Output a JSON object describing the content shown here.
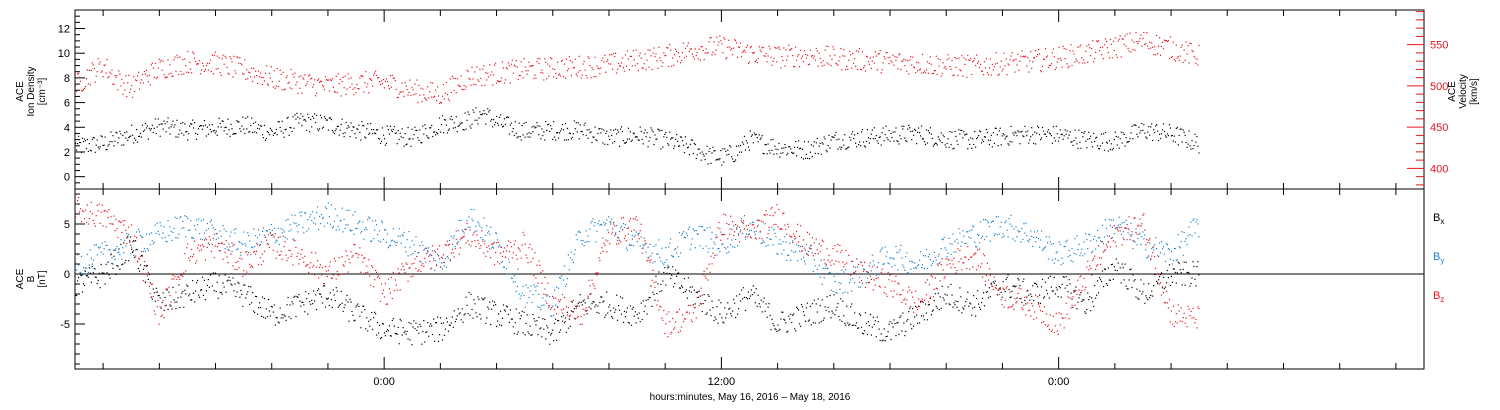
{
  "chart_data": [
    {
      "type": "scatter",
      "panel": "top",
      "ylabel_left": [
        "ACE",
        "Ion Density",
        "[cm⁻³]"
      ],
      "ylabel_right": [
        "ACE",
        "Velocity",
        "[km/s]"
      ],
      "ylim_left": [
        -1,
        13.5
      ],
      "yticks_left": [
        0,
        2,
        4,
        6,
        8,
        10,
        12
      ],
      "ylim_right": [
        375,
        592
      ],
      "yticks_right": [
        400,
        450,
        500,
        550
      ],
      "right_axis_color": "#e8141e",
      "series": [
        {
          "axis": "left",
          "color": "#000000",
          "values": [
            [
              -11,
              2.5
            ],
            [
              -10,
              2.7
            ],
            [
              -9,
              3.5
            ],
            [
              -8,
              4.1
            ],
            [
              -7,
              3.8
            ],
            [
              -6,
              4.0
            ],
            [
              -5,
              4.2
            ],
            [
              -4,
              3.6
            ],
            [
              -3,
              4.5
            ],
            [
              -2,
              4.3
            ],
            [
              -1,
              3.8
            ],
            [
              0,
              3.4
            ],
            [
              1,
              3.2
            ],
            [
              2,
              4.3
            ],
            [
              3,
              4.6
            ],
            [
              3.5,
              5.2
            ],
            [
              4,
              4.4
            ],
            [
              5,
              3.7
            ],
            [
              6,
              3.8
            ],
            [
              7,
              3.8
            ],
            [
              8,
              3.2
            ],
            [
              9,
              3.4
            ],
            [
              10,
              3.0
            ],
            [
              11,
              2.3
            ],
            [
              11.5,
              1.8
            ],
            [
              12,
              1.6
            ],
            [
              12.5,
              2.0
            ],
            [
              13,
              3.0
            ],
            [
              14,
              2.4
            ],
            [
              15,
              2.2
            ],
            [
              16,
              3.0
            ],
            [
              17,
              3.2
            ],
            [
              18,
              3.4
            ],
            [
              19,
              3.5
            ],
            [
              20,
              3.1
            ],
            [
              21,
              3.0
            ],
            [
              22,
              3.3
            ],
            [
              23,
              3.5
            ],
            [
              24,
              3.4
            ],
            [
              25,
              3.0
            ],
            [
              26,
              2.9
            ],
            [
              27,
              3.8
            ],
            [
              28,
              3.5
            ],
            [
              29,
              2.7
            ]
          ]
        },
        {
          "axis": "right",
          "color": "#e8141e",
          "values": [
            [
              -11,
              500
            ],
            [
              -10.5,
              515
            ],
            [
              -10,
              525
            ],
            [
              -9.5,
              508
            ],
            [
              -9,
              498
            ],
            [
              -8.5,
              512
            ],
            [
              -8,
              522
            ],
            [
              -7,
              530
            ],
            [
              -6,
              528
            ],
            [
              -5,
              520
            ],
            [
              -4,
              510
            ],
            [
              -3,
              505
            ],
            [
              -2,
              500
            ],
            [
              -1,
              504
            ],
            [
              0,
              505
            ],
            [
              1,
              495
            ],
            [
              2,
              490
            ],
            [
              3,
              512
            ],
            [
              4,
              516
            ],
            [
              5,
              520
            ],
            [
              6,
              522
            ],
            [
              7,
              524
            ],
            [
              8,
              526
            ],
            [
              9,
              532
            ],
            [
              10,
              536
            ],
            [
              11,
              545
            ],
            [
              12,
              548
            ],
            [
              12.5,
              544
            ],
            [
              13,
              540
            ],
            [
              14,
              536
            ],
            [
              15,
              538
            ],
            [
              16,
              534
            ],
            [
              17,
              532
            ],
            [
              18,
              530
            ],
            [
              19,
              528
            ],
            [
              20,
              525
            ],
            [
              21,
              524
            ],
            [
              22,
              528
            ],
            [
              23,
              530
            ],
            [
              24,
              535
            ],
            [
              25,
              540
            ],
            [
              26,
              548
            ],
            [
              27,
              555
            ],
            [
              28,
              546
            ],
            [
              29,
              536
            ]
          ]
        }
      ]
    },
    {
      "type": "scatter",
      "panel": "bottom",
      "ylabel_left": [
        "ACE",
        "B",
        "[nT]"
      ],
      "ylim": [
        -9.5,
        8.5
      ],
      "yticks": [
        -5,
        0,
        5
      ],
      "zero_line": true,
      "x_labels": [
        "0:00",
        "12:00",
        "0:00"
      ],
      "series": [
        {
          "name": "Bx",
          "color": "#000000",
          "values": [
            [
              -11,
              -1
            ],
            [
              -10,
              0
            ],
            [
              -9,
              3
            ],
            [
              -8,
              -3
            ],
            [
              -7,
              -2
            ],
            [
              -6,
              -1
            ],
            [
              -5,
              -2
            ],
            [
              -4,
              -4
            ],
            [
              -3,
              -3
            ],
            [
              -2,
              -2
            ],
            [
              -1,
              -4
            ],
            [
              0,
              -5.5
            ],
            [
              1,
              -5.8
            ],
            [
              2,
              -5.5
            ],
            [
              3,
              -3
            ],
            [
              4,
              -4
            ],
            [
              5,
              -5
            ],
            [
              6,
              -6
            ],
            [
              7,
              -3
            ],
            [
              8,
              -3
            ],
            [
              9,
              -4
            ],
            [
              10,
              0
            ],
            [
              11,
              -2
            ],
            [
              12,
              -4
            ],
            [
              13,
              -2
            ],
            [
              14,
              -5
            ],
            [
              15,
              -4
            ],
            [
              16,
              -3
            ],
            [
              17,
              -5
            ],
            [
              18,
              -5.8
            ],
            [
              19,
              -4
            ],
            [
              20,
              -2
            ],
            [
              21,
              -3
            ],
            [
              22,
              -1
            ],
            [
              23,
              -2
            ],
            [
              24,
              -1
            ],
            [
              25,
              -3
            ],
            [
              26,
              1
            ],
            [
              27,
              -2
            ],
            [
              28,
              0
            ],
            [
              29,
              0
            ]
          ]
        },
        {
          "name": "By",
          "color": "#1a7fd0",
          "values": [
            [
              -11,
              1
            ],
            [
              -10,
              2
            ],
            [
              -9,
              3
            ],
            [
              -8,
              4
            ],
            [
              -7,
              5
            ],
            [
              -6,
              4
            ],
            [
              -5,
              3
            ],
            [
              -4,
              4
            ],
            [
              -3,
              5
            ],
            [
              -2,
              6
            ],
            [
              -1,
              5
            ],
            [
              0,
              4
            ],
            [
              1,
              3
            ],
            [
              2,
              1
            ],
            [
              3,
              6
            ],
            [
              4,
              3
            ],
            [
              5,
              -2
            ],
            [
              6,
              -3
            ],
            [
              7,
              4
            ],
            [
              8,
              5
            ],
            [
              9,
              3
            ],
            [
              10,
              2
            ],
            [
              11,
              4
            ],
            [
              12,
              3
            ],
            [
              13,
              5
            ],
            [
              14,
              3
            ],
            [
              15,
              2
            ],
            [
              16,
              -1
            ],
            [
              17,
              0
            ],
            [
              18,
              2
            ],
            [
              19,
              1
            ],
            [
              20,
              3
            ],
            [
              21,
              4
            ],
            [
              22,
              5
            ],
            [
              23,
              4
            ],
            [
              24,
              2
            ],
            [
              25,
              3
            ],
            [
              26,
              5
            ],
            [
              27,
              3
            ],
            [
              28,
              2
            ],
            [
              29,
              5
            ]
          ]
        },
        {
          "name": "Bz",
          "color": "#e8141e",
          "values": [
            [
              -11,
              6.5
            ],
            [
              -10,
              5.8
            ],
            [
              -9,
              4
            ],
            [
              -8,
              -4
            ],
            [
              -7,
              2
            ],
            [
              -6,
              3
            ],
            [
              -5,
              1
            ],
            [
              -4,
              3
            ],
            [
              -3,
              2
            ],
            [
              -2,
              0
            ],
            [
              -1,
              2
            ],
            [
              0,
              -2
            ],
            [
              1,
              1
            ],
            [
              2,
              2
            ],
            [
              3,
              4
            ],
            [
              4,
              2
            ],
            [
              5,
              3
            ],
            [
              6,
              -3
            ],
            [
              7,
              -4
            ],
            [
              8,
              4
            ],
            [
              9,
              5
            ],
            [
              10,
              -5
            ],
            [
              11,
              -4
            ],
            [
              12,
              5
            ],
            [
              13,
              4
            ],
            [
              14,
              6
            ],
            [
              15,
              3
            ],
            [
              16,
              2
            ],
            [
              17,
              0
            ],
            [
              18,
              -1
            ],
            [
              19,
              -3
            ],
            [
              20,
              1
            ],
            [
              21,
              2
            ],
            [
              22,
              -2
            ],
            [
              23,
              -3
            ],
            [
              24,
              -5
            ],
            [
              25,
              0
            ],
            [
              26,
              4
            ],
            [
              27,
              5
            ],
            [
              28,
              -4
            ],
            [
              29,
              -4.5
            ]
          ]
        }
      ],
      "legend": [
        {
          "label": "B",
          "sub": "x",
          "color": "#000000"
        },
        {
          "label": "B",
          "sub": "y",
          "color": "#1a7fd0"
        },
        {
          "label": "B",
          "sub": "z",
          "color": "#e8141e"
        }
      ]
    }
  ],
  "x_axis": {
    "range_hours": [
      -11,
      37
    ],
    "major_ticks_hours": [
      0,
      12,
      24
    ],
    "major_labels": [
      "0:00",
      "12:00",
      "0:00"
    ],
    "minor_tick_hours": 2,
    "xlabel": "hours:minutes, May 16, 2016 – May 18, 2016"
  }
}
